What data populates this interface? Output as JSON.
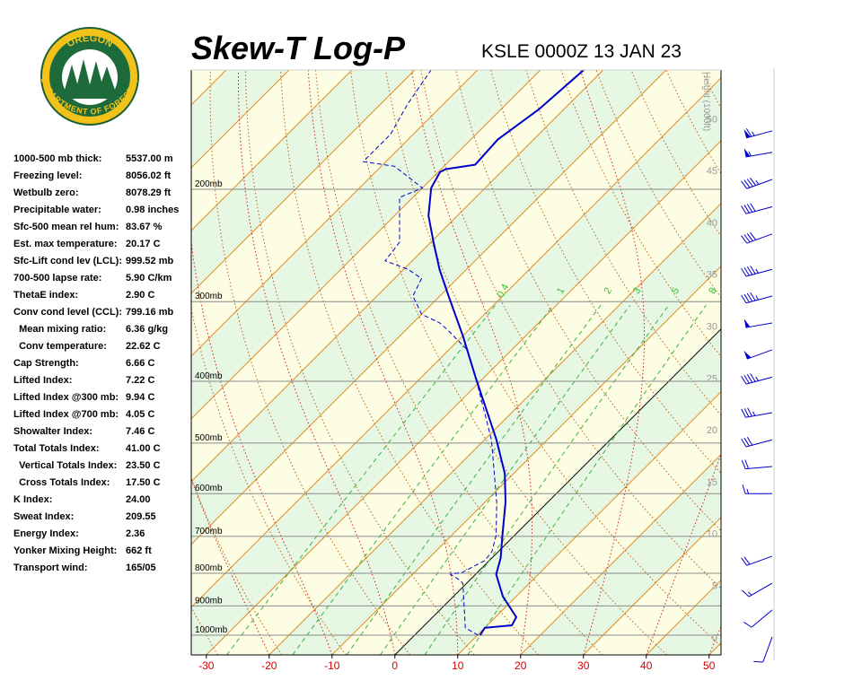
{
  "logo": {
    "top": "OREGON",
    "bottom": "DEPARTMENT OF FORESTRY"
  },
  "chart_data": {
    "type": "skewt",
    "title": "Skew-T Log-P",
    "subtitle": "KSLE 0000Z 13 JAN 23",
    "xlim": [
      -32.4,
      51.9
    ],
    "xticks": [
      -30,
      -20,
      -10,
      0,
      10,
      20,
      30,
      40,
      50
    ],
    "ylim": [
      1074,
      130
    ],
    "log_y": true,
    "yticks": [
      {
        "value": 200,
        "label": "200mb"
      },
      {
        "value": 300,
        "label": "300mb"
      },
      {
        "value": 400,
        "label": "400mb"
      },
      {
        "value": 500,
        "label": "500mb"
      },
      {
        "value": 600,
        "label": "600mb"
      },
      {
        "value": 700,
        "label": "700mb"
      },
      {
        "value": 800,
        "label": "800mb"
      },
      {
        "value": 900,
        "label": "900mb"
      },
      {
        "value": 1000,
        "label": "1000mb"
      }
    ],
    "y2label": "Height (1000ft)",
    "y2lim": [
      -1.7,
      54.7
    ],
    "y2ticks": [
      0,
      5,
      10,
      15,
      20,
      25,
      30,
      35,
      40,
      45,
      50
    ],
    "mixing_ratios": [
      0.4,
      1,
      2,
      3,
      5,
      8
    ],
    "series": [
      {
        "name": "Temperature",
        "color": "#0000cc",
        "dash": false,
        "pressure": [
          1000,
          974,
          965,
          937,
          870,
          803,
          757,
          698,
          619,
          558,
          494,
          394,
          340,
          294,
          267,
          242,
          220,
          199,
          188,
          186,
          183,
          167,
          150,
          130
        ],
        "values": [
          10.4,
          10.0,
          13.9,
          13.3,
          7.9,
          3.3,
          1.4,
          -1.9,
          -6.7,
          -11.4,
          -18.1,
          -31.4,
          -39.9,
          -48.6,
          -54.3,
          -59.6,
          -64.6,
          -68.6,
          -69.7,
          -69.3,
          -65.3,
          -65.7,
          -64.0,
          -63.1
        ]
      },
      {
        "name": "Dewpoint",
        "color": "#0000cc",
        "dash": true,
        "pressure": [
          1000,
          974,
          829,
          816,
          803,
          797,
          764,
          740,
          698,
          619,
          494,
          448,
          394,
          357,
          334,
          324,
          314,
          304,
          294,
          276,
          267,
          259,
          242,
          206,
          199,
          184,
          181,
          164,
          147,
          130
        ],
        "values": [
          10.1,
          6.9,
          -0.6,
          -2.1,
          -4.0,
          -2.4,
          -0.7,
          -1.0,
          -2.9,
          -8.1,
          -18.9,
          -24.3,
          -31.4,
          -37.1,
          -42.9,
          -45.7,
          -50.0,
          -52.1,
          -54.3,
          -55.7,
          -59.3,
          -64.3,
          -65.0,
          -72.1,
          -70.0,
          -77.9,
          -83.6,
          -83.6,
          -85.7,
          -87.4
        ]
      }
    ],
    "winds": {
      "pressure": [
        162,
        175,
        193,
        213,
        235,
        267,
        294,
        324,
        357,
        394,
        448,
        494,
        544,
        600,
        752,
        829,
        913,
        1006
      ],
      "direction": [
        255,
        260,
        250,
        255,
        250,
        255,
        255,
        260,
        250,
        255,
        260,
        255,
        265,
        270,
        250,
        240,
        230,
        200
      ],
      "speed": [
        65,
        55,
        45,
        40,
        40,
        45,
        45,
        50,
        50,
        45,
        35,
        30,
        20,
        15,
        20,
        15,
        10,
        10
      ]
    },
    "indices": [
      [
        "1000-500 mb thick:",
        "5537.00 m"
      ],
      [
        "Freezing level:",
        "8056.02 ft"
      ],
      [
        "Wetbulb zero:",
        "8078.29 ft"
      ],
      [
        "Precipitable water:",
        "0.98 inches"
      ],
      [
        "Sfc-500 mean rel hum:",
        "83.67 %"
      ],
      [
        "Est. max temperature:",
        "20.17 C"
      ],
      [
        "Sfc-Lift cond lev (LCL):",
        "999.52 mb"
      ],
      [
        "700-500 lapse rate:",
        "5.90 C/km"
      ],
      [
        "ThetaE index:",
        "2.90 C"
      ],
      [
        "Conv cond level (CCL):",
        "799.16 mb"
      ],
      [
        "  Mean mixing ratio:",
        "6.36 g/kg"
      ],
      [
        "  Conv temperature:",
        "22.62 C"
      ],
      [
        "Cap Strength:",
        "6.66 C"
      ],
      [
        "Lifted Index:",
        "7.22 C"
      ],
      [
        "Lifted Index @300 mb:",
        "9.94 C"
      ],
      [
        "Lifted Index @700 mb:",
        "4.05 C"
      ],
      [
        "Showalter Index:",
        "7.46 C"
      ],
      [
        "Total Totals Index:",
        "41.00 C"
      ],
      [
        "  Vertical Totals Index:",
        "23.50 C"
      ],
      [
        "  Cross Totals Index:",
        "17.50 C"
      ],
      [
        "K Index:",
        "24.00"
      ],
      [
        "Sweat Index:",
        "209.55"
      ],
      [
        "Energy Index:",
        "2.36"
      ],
      [
        "Yonker Mixing Height:",
        "662 ft"
      ],
      [
        "Transport wind:",
        "165/05"
      ]
    ]
  }
}
